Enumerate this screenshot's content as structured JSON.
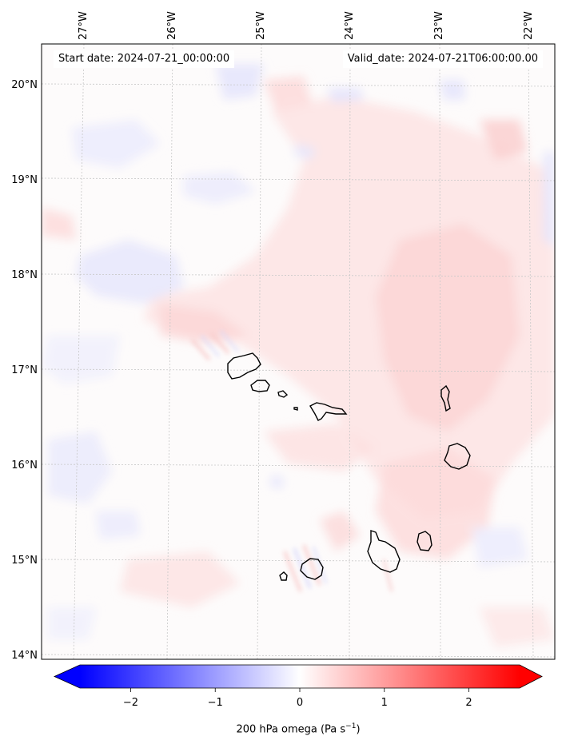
{
  "header": {
    "start_date": "Start date: 2024-07-21_00:00:00",
    "valid_date": "Valid_date: 2024-07-21T06:00:00.00"
  },
  "axes": {
    "longitude_labels": [
      "27°W",
      "26°W",
      "25°W",
      "24°W",
      "23°W",
      "22°W"
    ],
    "latitude_labels": [
      "20°N",
      "19°N",
      "18°N",
      "17°N",
      "16°N",
      "15°N",
      "14°N"
    ]
  },
  "colorbar": {
    "label": "200 hPa omega (Pa s",
    "label_sup": "−1",
    "label_end": ")",
    "min": -2.6,
    "max": 2.6,
    "ticks": [
      "−2",
      "−1",
      "0",
      "1",
      "2"
    ],
    "tick_values": [
      -2,
      -1,
      0,
      1,
      2
    ],
    "colormap": "bwr",
    "extend": "both",
    "low_color": "#0000ff",
    "high_color": "#ff0000"
  },
  "map": {
    "coastline_color": "#000000",
    "grid": true,
    "features": [
      "island-santo-antao",
      "island-sao-vicente",
      "island-santa-luzia",
      "island-branco",
      "island-sao-nicolau",
      "island-sal",
      "island-boa-vista",
      "island-maio",
      "island-santiago",
      "island-fogo",
      "island-brava"
    ]
  }
}
